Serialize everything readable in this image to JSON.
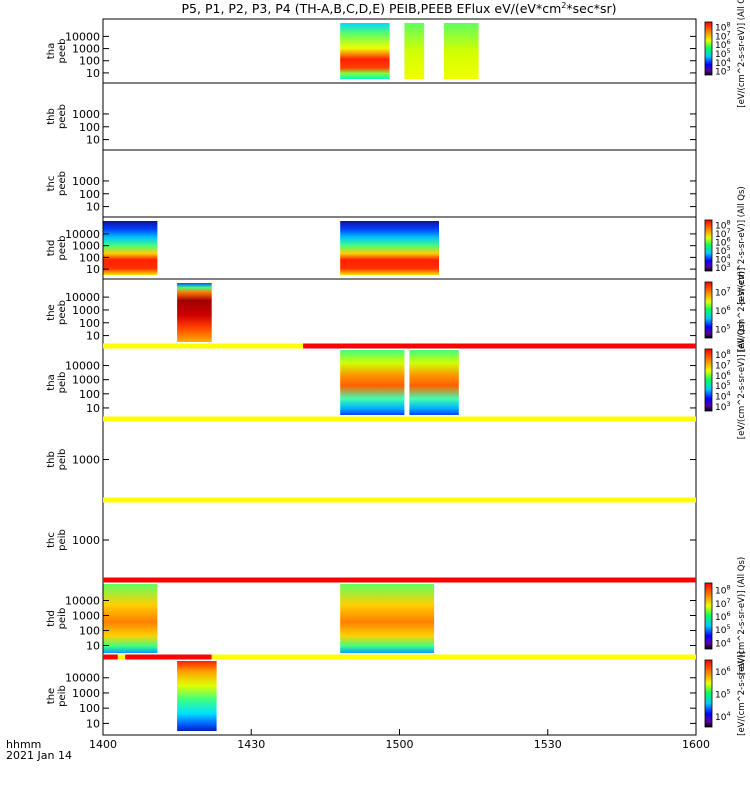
{
  "chart_data": {
    "type": "heatmap",
    "title": "P5, P1, P2, P3, P4 (TH-A,B,C,D,E) PEIB,PEEB EFlux eV/(eV*cm",
    "title_sup": "2",
    "title_tail": "*sec*sr)",
    "x_axis": {
      "label_line1": "hhmm",
      "label_line2": "2021 Jan 14",
      "range": [
        0,
        120
      ],
      "ticks": [
        {
          "value": 0,
          "label": "1400"
        },
        {
          "value": 30,
          "label": "1430"
        },
        {
          "value": 60,
          "label": "1500"
        },
        {
          "value": 90,
          "label": "1530"
        },
        {
          "value": 120,
          "label": "1600"
        }
      ]
    },
    "panels": [
      {
        "probe": "tha",
        "type": "peeb",
        "ylabel": [
          "tha",
          "peeb"
        ],
        "yticks": [
          "10",
          "100",
          "1000",
          "10000"
        ],
        "log_y": true,
        "colorbar": {
          "labels": [
            "10^8",
            "10^7",
            "10^6",
            "10^5",
            "10^4",
            "10^3"
          ],
          "unit": "[eV/(cm^2-s-sr-eV)] (All Qs)"
        },
        "data_intervals": [
          [
            48,
            58
          ],
          [
            61,
            65
          ],
          [
            69,
            76
          ]
        ]
      },
      {
        "probe": "thb",
        "type": "peeb",
        "ylabel": [
          "thb",
          "peeb"
        ],
        "yticks": [
          "10",
          "100",
          "1000"
        ],
        "log_y": true,
        "data_intervals": []
      },
      {
        "probe": "thc",
        "type": "peeb",
        "ylabel": [
          "thc",
          "peeb"
        ],
        "yticks": [
          "10",
          "100",
          "1000"
        ],
        "log_y": true,
        "data_intervals": []
      },
      {
        "probe": "thd",
        "type": "peeb",
        "ylabel": [
          "thd",
          "peeb"
        ],
        "yticks": [
          "10",
          "100",
          "1000",
          "10000"
        ],
        "log_y": true,
        "colorbar": {
          "labels": [
            "10^8",
            "10^7",
            "10^6",
            "10^5",
            "10^4",
            "10^3"
          ],
          "unit": "[eV/(cm^2-s-sr-eV)] (All Qs)"
        },
        "data_intervals": [
          [
            0,
            11
          ],
          [
            48,
            68
          ]
        ]
      },
      {
        "probe": "the",
        "type": "peeb",
        "ylabel": [
          "the",
          "peeb"
        ],
        "yticks": [
          "10",
          "100",
          "1000",
          "10000"
        ],
        "log_y": true,
        "colorbar": {
          "labels": [
            "10^7",
            "10^6",
            "10^5"
          ],
          "unit": "[eV/(cm^2-s-sr-eV)]"
        },
        "data_intervals": [
          [
            15,
            22
          ]
        ]
      },
      {
        "probe": "tha",
        "type": "peib",
        "ylabel": [
          "tha",
          "peib"
        ],
        "yticks": [
          "10",
          "100",
          "1000",
          "10000"
        ],
        "log_y": true,
        "colorbar": {
          "labels": [
            "10^8",
            "10^7",
            "10^6",
            "10^5",
            "10^4",
            "10^3"
          ],
          "unit": "[eV/(cm^2-s-sr-eV)] (All Qs)"
        },
        "data_intervals": [
          [
            48,
            61
          ],
          [
            62,
            72
          ]
        ]
      },
      {
        "probe": "thb",
        "type": "peib",
        "ylabel": [
          "thb",
          "peib"
        ],
        "yticks": [
          "1000"
        ],
        "log_y": true,
        "data_intervals": []
      },
      {
        "probe": "thc",
        "type": "peib",
        "ylabel": [
          "thc",
          "peib"
        ],
        "yticks": [
          "1000"
        ],
        "log_y": true,
        "data_intervals": []
      },
      {
        "probe": "thd",
        "type": "peib",
        "ylabel": [
          "thd",
          "peib"
        ],
        "yticks": [
          "10",
          "100",
          "1000",
          "10000"
        ],
        "log_y": true,
        "colorbar": {
          "labels": [
            "10^8",
            "10^7",
            "10^6",
            "10^5",
            "10^4"
          ],
          "unit": "[eV/(cm^2-s-sr-eV)] (All Qs)"
        },
        "data_intervals": [
          [
            0,
            11
          ],
          [
            48,
            67
          ]
        ]
      },
      {
        "probe": "the",
        "type": "peib",
        "ylabel": [
          "the",
          "peib"
        ],
        "yticks": [
          "10",
          "100",
          "1000",
          "10000"
        ],
        "log_y": true,
        "colorbar": {
          "labels": [
            "10^6",
            "10^5",
            "10^4"
          ],
          "unit": "[eV/(cm^2-s-sr-eV)]"
        },
        "data_intervals": [
          [
            15,
            23
          ]
        ]
      }
    ]
  }
}
